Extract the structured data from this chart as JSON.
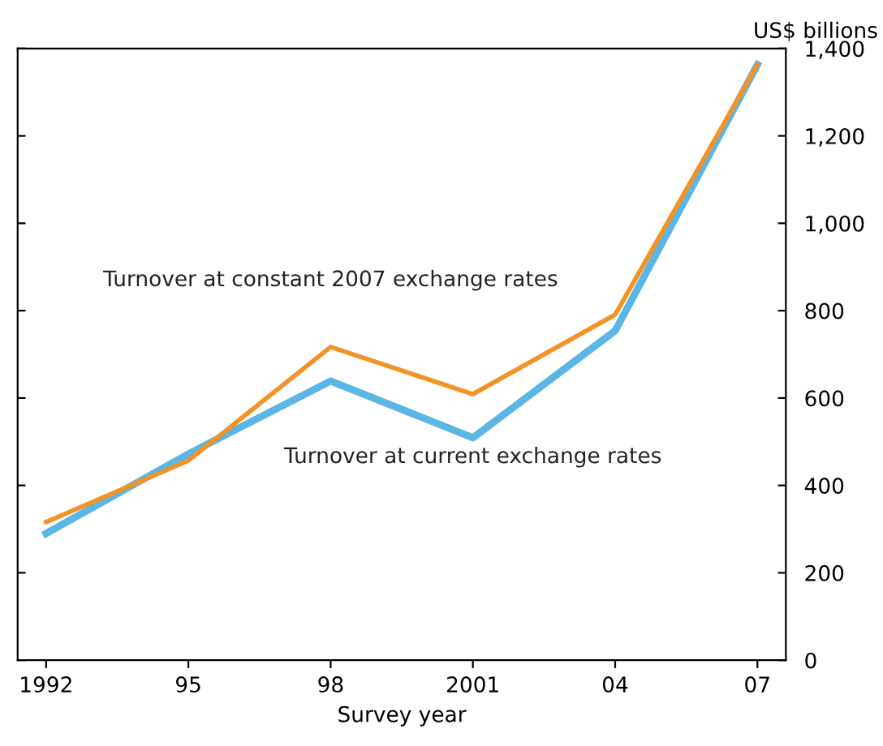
{
  "chart_data": {
    "type": "line",
    "xlabel": "Survey year",
    "ylabel": "US$ billions",
    "categories": [
      "1992",
      "95",
      "98",
      "2001",
      "04",
      "07"
    ],
    "series": [
      {
        "name": "Turnover at constant 2007 exchange rates",
        "color": "#f39325",
        "values": [
          316,
          457,
          717,
          609,
          791,
          1363
        ]
      },
      {
        "name": "Turnover at current exchange rates",
        "color": "#5bb5e5",
        "values": [
          290,
          472,
          639,
          509,
          754,
          1363
        ]
      }
    ],
    "ylim": [
      0,
      1400
    ],
    "yticks": [
      0,
      {
        "value": 200,
        "label": "200"
      },
      {
        "value": 400,
        "label": "400"
      },
      {
        "value": 600,
        "label": "600"
      },
      {
        "value": 800,
        "label": "800"
      },
      {
        "value": 1000,
        "label": "1,000"
      },
      {
        "value": 1200,
        "label": "1,200"
      },
      {
        "value": 1400,
        "label": "1,400"
      }
    ],
    "grid": false,
    "legend": false,
    "marker": "none",
    "line_style": "solid"
  }
}
